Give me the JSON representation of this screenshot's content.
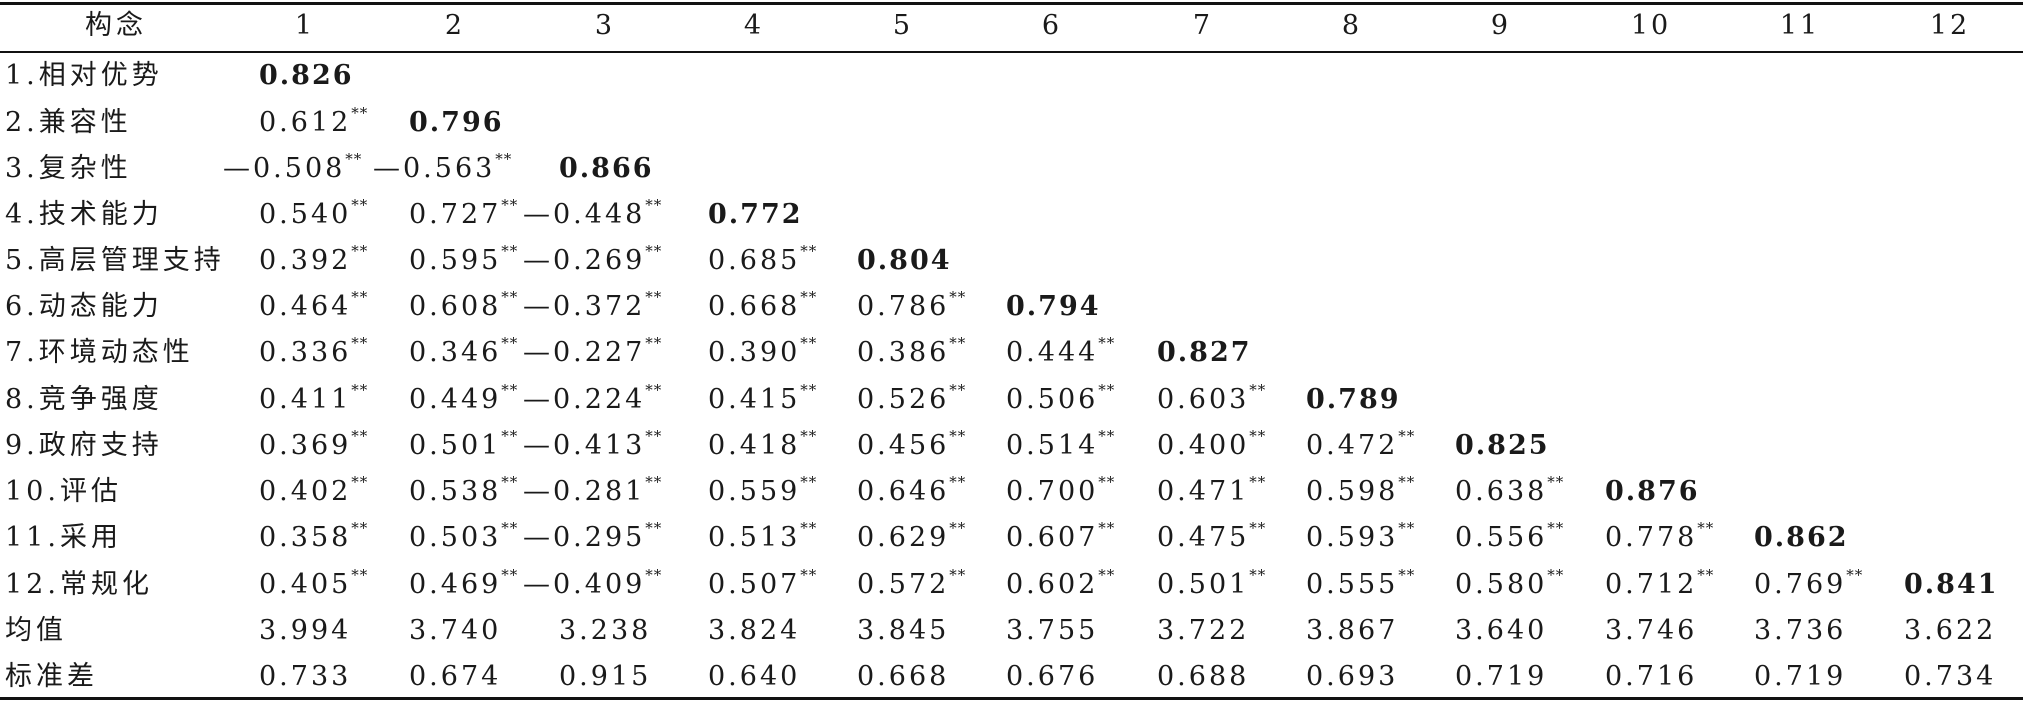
{
  "table": {
    "header": {
      "label": "构念",
      "columns": [
        "1",
        "2",
        "3",
        "4",
        "5",
        "6",
        "7",
        "8",
        "9",
        "10",
        "11",
        "12"
      ]
    },
    "rows": [
      {
        "label": "1.相对优势",
        "cells": [
          {
            "v": "0.826",
            "b": true
          }
        ]
      },
      {
        "label": "2.兼容性",
        "cells": [
          {
            "v": "0.612",
            "s": "**"
          },
          {
            "v": "0.796",
            "b": true
          }
        ]
      },
      {
        "label": "3.复杂性",
        "cells": [
          {
            "v": "—0.508",
            "s": "**"
          },
          {
            "v": "—0.563",
            "s": "**"
          },
          {
            "v": "0.866",
            "b": true
          }
        ]
      },
      {
        "label": "4.技术能力",
        "cells": [
          {
            "v": "0.540",
            "s": "**"
          },
          {
            "v": "0.727",
            "s": "**"
          },
          {
            "v": "—0.448",
            "s": "**"
          },
          {
            "v": "0.772",
            "b": true
          }
        ]
      },
      {
        "label": "5.高层管理支持",
        "cells": [
          {
            "v": "0.392",
            "s": "**"
          },
          {
            "v": "0.595",
            "s": "**"
          },
          {
            "v": "—0.269",
            "s": "**"
          },
          {
            "v": "0.685",
            "s": "**"
          },
          {
            "v": "0.804",
            "b": true
          }
        ]
      },
      {
        "label": "6.动态能力",
        "cells": [
          {
            "v": "0.464",
            "s": "**"
          },
          {
            "v": "0.608",
            "s": "**"
          },
          {
            "v": "—0.372",
            "s": "**"
          },
          {
            "v": "0.668",
            "s": "**"
          },
          {
            "v": "0.786",
            "s": "**"
          },
          {
            "v": "0.794",
            "b": true
          }
        ]
      },
      {
        "label": "7.环境动态性",
        "cells": [
          {
            "v": "0.336",
            "s": "**"
          },
          {
            "v": "0.346",
            "s": "**"
          },
          {
            "v": "—0.227",
            "s": "**"
          },
          {
            "v": "0.390",
            "s": "**"
          },
          {
            "v": "0.386",
            "s": "**"
          },
          {
            "v": "0.444",
            "s": "**"
          },
          {
            "v": "0.827",
            "b": true
          }
        ]
      },
      {
        "label": "8.竞争强度",
        "cells": [
          {
            "v": "0.411",
            "s": "**"
          },
          {
            "v": "0.449",
            "s": "**"
          },
          {
            "v": "—0.224",
            "s": "**"
          },
          {
            "v": "0.415",
            "s": "**"
          },
          {
            "v": "0.526",
            "s": "**"
          },
          {
            "v": "0.506",
            "s": "**"
          },
          {
            "v": "0.603",
            "s": "**"
          },
          {
            "v": "0.789",
            "b": true
          }
        ]
      },
      {
        "label": "9.政府支持",
        "cells": [
          {
            "v": "0.369",
            "s": "**"
          },
          {
            "v": "0.501",
            "s": "**"
          },
          {
            "v": "—0.413",
            "s": "**"
          },
          {
            "v": "0.418",
            "s": "**"
          },
          {
            "v": "0.456",
            "s": "**"
          },
          {
            "v": "0.514",
            "s": "**"
          },
          {
            "v": "0.400",
            "s": "**"
          },
          {
            "v": "0.472",
            "s": "**"
          },
          {
            "v": "0.825",
            "b": true
          }
        ]
      },
      {
        "label": "10.评估",
        "cells": [
          {
            "v": "0.402",
            "s": "**"
          },
          {
            "v": "0.538",
            "s": "**"
          },
          {
            "v": "—0.281",
            "s": "**"
          },
          {
            "v": "0.559",
            "s": "**"
          },
          {
            "v": "0.646",
            "s": "**"
          },
          {
            "v": "0.700",
            "s": "**"
          },
          {
            "v": "0.471",
            "s": "**"
          },
          {
            "v": "0.598",
            "s": "**"
          },
          {
            "v": "0.638",
            "s": "**"
          },
          {
            "v": "0.876",
            "b": true
          }
        ]
      },
      {
        "label": "11.采用",
        "cells": [
          {
            "v": "0.358",
            "s": "**"
          },
          {
            "v": "0.503",
            "s": "**"
          },
          {
            "v": "—0.295",
            "s": "**"
          },
          {
            "v": "0.513",
            "s": "**"
          },
          {
            "v": "0.629",
            "s": "**"
          },
          {
            "v": "0.607",
            "s": "**"
          },
          {
            "v": "0.475",
            "s": "**"
          },
          {
            "v": "0.593",
            "s": "**"
          },
          {
            "v": "0.556",
            "s": "**"
          },
          {
            "v": "0.778",
            "s": "**"
          },
          {
            "v": "0.862",
            "b": true
          }
        ]
      },
      {
        "label": "12.常规化",
        "cells": [
          {
            "v": "0.405",
            "s": "**"
          },
          {
            "v": "0.469",
            "s": "**"
          },
          {
            "v": "—0.409",
            "s": "**"
          },
          {
            "v": "0.507",
            "s": "**"
          },
          {
            "v": "0.572",
            "s": "**"
          },
          {
            "v": "0.602",
            "s": "**"
          },
          {
            "v": "0.501",
            "s": "**"
          },
          {
            "v": "0.555",
            "s": "**"
          },
          {
            "v": "0.580",
            "s": "**"
          },
          {
            "v": "0.712",
            "s": "**"
          },
          {
            "v": "0.769",
            "s": "**"
          },
          {
            "v": "0.841",
            "b": true
          }
        ]
      },
      {
        "label": "均值",
        "cells": [
          {
            "v": "3.994"
          },
          {
            "v": "3.740"
          },
          {
            "v": "3.238"
          },
          {
            "v": "3.824"
          },
          {
            "v": "3.845"
          },
          {
            "v": "3.755"
          },
          {
            "v": "3.722"
          },
          {
            "v": "3.867"
          },
          {
            "v": "3.640"
          },
          {
            "v": "3.746"
          },
          {
            "v": "3.736"
          },
          {
            "v": "3.622"
          }
        ]
      },
      {
        "label": "标准差",
        "cells": [
          {
            "v": "0.733"
          },
          {
            "v": "0.674"
          },
          {
            "v": "0.915"
          },
          {
            "v": "0.640"
          },
          {
            "v": "0.668"
          },
          {
            "v": "0.676"
          },
          {
            "v": "0.688"
          },
          {
            "v": "0.693"
          },
          {
            "v": "0.719"
          },
          {
            "v": "0.716"
          },
          {
            "v": "0.719"
          },
          {
            "v": "0.734"
          }
        ]
      }
    ]
  }
}
